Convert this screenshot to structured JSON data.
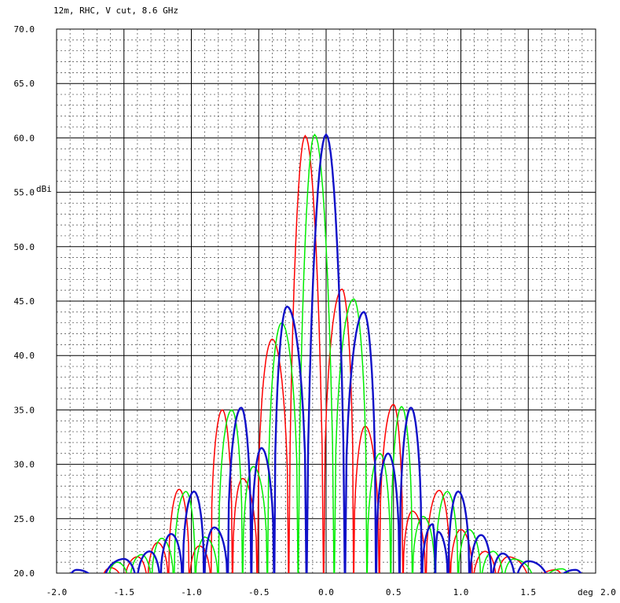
{
  "chart_data": {
    "type": "line",
    "title": "12m, RHC, V cut, 8.6 GHz",
    "xlabel": "deg",
    "ylabel": "dBi",
    "xlim": [
      -2.0,
      2.0
    ],
    "ylim": [
      20.0,
      70.0
    ],
    "x_ticks": [
      "-2.0",
      "-1.5",
      "-1.0",
      "-0.5",
      "0.0",
      "0.5",
      "1.0",
      "1.5",
      "2.0"
    ],
    "y_ticks": [
      "20.0",
      "25.0",
      "30.0",
      "35.0",
      "40.0",
      "45.0",
      "50.0",
      "55.0",
      "60.0",
      "65.0",
      "70.0"
    ],
    "grid": true,
    "series": [
      {
        "color": "#ff0000",
        "peaks": [
          {
            "x": -0.155,
            "y": 60.2
          },
          {
            "x": 0.118,
            "y": 46.1
          },
          {
            "x": -0.4,
            "y": 41.5
          },
          {
            "x": 0.29,
            "y": 33.5
          },
          {
            "x": -0.77,
            "y": 35.0
          },
          {
            "x": -0.62,
            "y": 28.7
          },
          {
            "x": 0.5,
            "y": 35.5
          },
          {
            "x": 0.64,
            "y": 25.7
          },
          {
            "x": -1.09,
            "y": 27.7
          },
          {
            "x": -0.94,
            "y": 22.5
          },
          {
            "x": 0.84,
            "y": 27.6
          },
          {
            "x": 1.0,
            "y": 24.0
          },
          {
            "x": -1.25,
            "y": 22.8
          },
          {
            "x": -1.4,
            "y": 21.5
          },
          {
            "x": 1.18,
            "y": 22.0
          },
          {
            "x": 1.35,
            "y": 21.5
          },
          {
            "x": -1.6,
            "y": 20.5
          },
          {
            "x": 1.7,
            "y": 20.3
          }
        ]
      },
      {
        "color": "#00ee00",
        "peaks": [
          {
            "x": -0.085,
            "y": 60.3
          },
          {
            "x": 0.205,
            "y": 45.2
          },
          {
            "x": -0.33,
            "y": 43.0
          },
          {
            "x": 0.4,
            "y": 31.0
          },
          {
            "x": -0.7,
            "y": 35.0
          },
          {
            "x": -0.54,
            "y": 29.8
          },
          {
            "x": 0.56,
            "y": 35.3
          },
          {
            "x": 0.72,
            "y": 25.2
          },
          {
            "x": -1.04,
            "y": 27.5
          },
          {
            "x": -0.9,
            "y": 23.3
          },
          {
            "x": 0.9,
            "y": 27.5
          },
          {
            "x": 1.06,
            "y": 24.0
          },
          {
            "x": -1.22,
            "y": 23.2
          },
          {
            "x": -1.37,
            "y": 21.7
          },
          {
            "x": 1.24,
            "y": 22.0
          },
          {
            "x": 1.39,
            "y": 21.3
          },
          {
            "x": -1.55,
            "y": 21.0
          },
          {
            "x": 1.75,
            "y": 20.4
          }
        ]
      },
      {
        "color": "#1010c8",
        "peaks": [
          {
            "x": 0.0,
            "y": 60.3
          },
          {
            "x": 0.28,
            "y": 44.0
          },
          {
            "x": -0.29,
            "y": 44.5
          },
          {
            "x": 0.46,
            "y": 31.0
          },
          {
            "x": -0.63,
            "y": 35.2
          },
          {
            "x": -0.48,
            "y": 31.5
          },
          {
            "x": 0.63,
            "y": 35.2
          },
          {
            "x": 0.79,
            "y": 24.5
          },
          {
            "x": -0.98,
            "y": 27.5
          },
          {
            "x": -0.83,
            "y": 24.2
          },
          {
            "x": 0.98,
            "y": 27.5
          },
          {
            "x": 0.83,
            "y": 23.8
          },
          {
            "x": -1.15,
            "y": 23.6
          },
          {
            "x": -1.31,
            "y": 22.0
          },
          {
            "x": 1.15,
            "y": 23.5
          },
          {
            "x": 1.31,
            "y": 21.8
          },
          {
            "x": -1.5,
            "y": 21.3
          },
          {
            "x": 1.5,
            "y": 21.1
          },
          {
            "x": -1.85,
            "y": 20.3
          },
          {
            "x": 1.85,
            "y": 20.3
          }
        ]
      }
    ]
  }
}
